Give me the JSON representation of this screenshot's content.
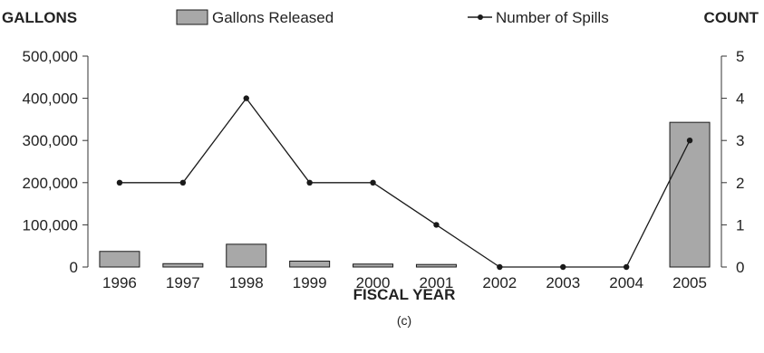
{
  "chart_data": {
    "type": "bar",
    "categories": [
      "1996",
      "1997",
      "1998",
      "1999",
      "2000",
      "2001",
      "2002",
      "2003",
      "2004",
      "2005"
    ],
    "series": [
      {
        "name": "Gallons Released",
        "type": "bar",
        "axis": "left",
        "values": [
          37000,
          8000,
          54000,
          14000,
          7000,
          6000,
          0,
          0,
          0,
          343000
        ]
      },
      {
        "name": "Number of Spills",
        "type": "line",
        "axis": "right",
        "values": [
          2,
          2,
          4,
          2,
          2,
          1,
          0,
          0,
          0,
          3
        ]
      }
    ],
    "xlabel": "FISCAL YEAR",
    "ylabel_left": "GALLONS",
    "ylabel_right": "COUNT",
    "ylim_left": [
      0,
      500000
    ],
    "ylim_right": [
      0,
      5
    ],
    "yticks_left": [
      "0",
      "100,000",
      "200,000",
      "300,000",
      "400,000",
      "500,000"
    ],
    "yticks_right": [
      "0",
      "1",
      "2",
      "3",
      "4",
      "5"
    ],
    "legend_placement": "top",
    "caption": "(c)",
    "grid": false,
    "colors": {
      "bar_fill": "#a8a8a8",
      "bar_stroke": "#1a1a1a",
      "line": "#1a1a1a",
      "axis": "#333333"
    }
  }
}
